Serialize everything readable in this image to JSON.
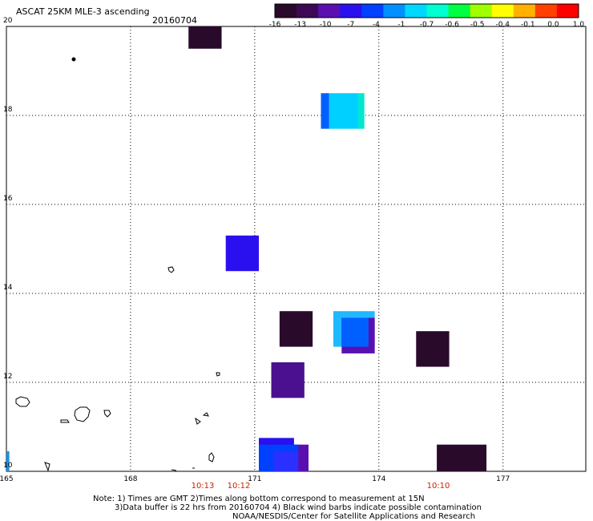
{
  "title": "ASCAT 25KM MLE-3 ascending",
  "date": "20160704",
  "colorbar": {
    "ticks": [
      "-16",
      "-13",
      "-10",
      "-7",
      "-4",
      "-1",
      "-0.7",
      "-0.6",
      "-0.5",
      "-0.4",
      "-0.1",
      "0.0",
      "1.0"
    ],
    "colors": [
      "#2a0a2a",
      "#3c0a55",
      "#5a10b0",
      "#2a10ee",
      "#0040ff",
      "#0090ff",
      "#00d8ff",
      "#00ffd0",
      "#00ff40",
      "#a0ff00",
      "#ffff00",
      "#ffb000",
      "#ff4000",
      "#ff0000"
    ]
  },
  "lat_labels": [
    "20",
    "18",
    "16",
    "14",
    "12",
    "10"
  ],
  "lon_labels": [
    "165",
    "168",
    "171",
    "174",
    "177"
  ],
  "time_labels": [
    "10:13",
    "10:12",
    "10:10"
  ],
  "notes": {
    "line1": "Note: 1) Times are GMT 2)Times along bottom correspond to measurement at 15N",
    "line2": "3)Data buffer is 22 hrs from 20160704 4) Black wind barbs indicate possible contamination",
    "line3": "NOAA/NESDIS/Center for Satellite Applications and Research"
  },
  "map_data": {
    "lon_range": [
      165,
      179
    ],
    "lat_range": [
      10,
      20
    ],
    "cells": [
      {
        "lon": [
          169.4,
          170.2
        ],
        "lat": [
          19.5,
          20.0
        ],
        "color": "#2a0a2a"
      },
      {
        "lon": [
          172.6,
          172.8
        ],
        "lat": [
          17.7,
          18.5
        ],
        "color": "#0060ff"
      },
      {
        "lon": [
          172.8,
          173.5
        ],
        "lat": [
          17.7,
          18.5
        ],
        "color": "#00d0ff"
      },
      {
        "lon": [
          173.5,
          173.65
        ],
        "lat": [
          17.7,
          18.5
        ],
        "color": "#00e8d0"
      },
      {
        "lon": [
          170.3,
          171.1
        ],
        "lat": [
          14.5,
          15.3
        ],
        "color": "#2a10ee"
      },
      {
        "lon": [
          171.6,
          172.4
        ],
        "lat": [
          12.8,
          13.6
        ],
        "color": "#2a0a2a"
      },
      {
        "lon": [
          172.9,
          173.9
        ],
        "lat": [
          12.8,
          13.6
        ],
        "color": "#20b8ff"
      },
      {
        "lon": [
          173.1,
          173.9
        ],
        "lat": [
          12.65,
          13.45
        ],
        "color": "#5a10b0"
      },
      {
        "lon": [
          173.1,
          173.75
        ],
        "lat": [
          12.8,
          13.45
        ],
        "color": "#0060ff"
      },
      {
        "lon": [
          174.9,
          175.7
        ],
        "lat": [
          12.35,
          13.15
        ],
        "color": "#2a0a2a"
      },
      {
        "lon": [
          171.4,
          172.2
        ],
        "lat": [
          11.65,
          12.45
        ],
        "color": "#4a1090"
      },
      {
        "lon": [
          171.1,
          171.95
        ],
        "lat": [
          9.9,
          10.75
        ],
        "color": "#2a10ee"
      },
      {
        "lon": [
          171.95,
          172.3
        ],
        "lat": [
          9.9,
          10.6
        ],
        "color": "#5a10b0"
      },
      {
        "lon": [
          171.1,
          172.05
        ],
        "lat": [
          9.9,
          10.6
        ],
        "color": "#0040ff"
      },
      {
        "lon": [
          171.45,
          172.05
        ],
        "lat": [
          9.9,
          10.45
        ],
        "color": "#2a30ff"
      },
      {
        "lon": [
          175.4,
          176.6
        ],
        "lat": [
          9.9,
          10.6
        ],
        "color": "#2a0a2a"
      },
      {
        "lon": [
          165.0,
          165.07
        ],
        "lat": [
          10.0,
          10.45
        ],
        "color": "#1a90e0"
      }
    ]
  }
}
